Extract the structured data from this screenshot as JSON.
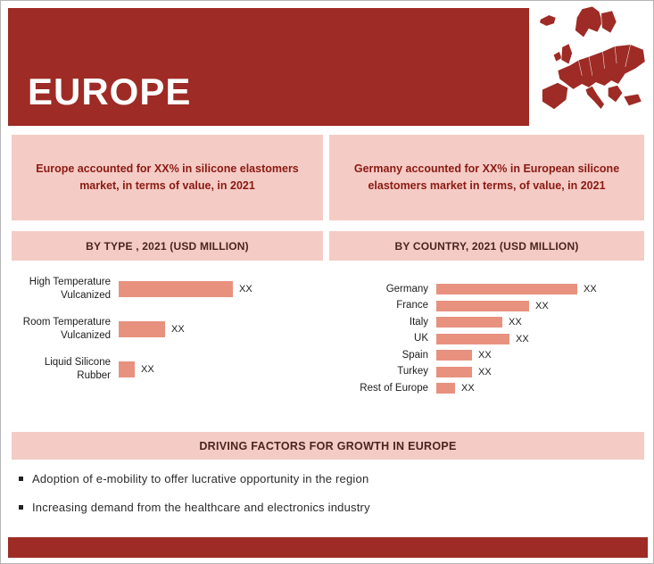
{
  "header": {
    "title": "EUROPE"
  },
  "callouts": {
    "left": "Europe accounted for XX% in silicone elastomers market, in terms of value, in 2021",
    "right": "Germany accounted for XX% in European silicone elastomers market in terms, of value, in 2021"
  },
  "chart_data": [
    {
      "type": "bar",
      "orientation": "horizontal",
      "title": "BY TYPE , 2021 (USD MILLION)",
      "categories": [
        "High Temperature Vulcanized",
        "Room Temperature Vulcanized",
        "Liquid Silicone Rubber"
      ],
      "value_labels": [
        "XX",
        "XX",
        "XX"
      ],
      "relative_values": [
        100,
        41,
        14
      ],
      "legend": "none",
      "grid": false
    },
    {
      "type": "bar",
      "orientation": "horizontal",
      "title": "BY COUNTRY, 2021 (USD MILLION)",
      "categories": [
        "Germany",
        "France",
        "Italy",
        "UK",
        "Spain",
        "Turkey",
        "Rest of Europe"
      ],
      "value_labels": [
        "XX",
        "XX",
        "XX",
        "XX",
        "XX",
        "XX",
        "XX"
      ],
      "relative_values": [
        100,
        66,
        47,
        52,
        25,
        25,
        13
      ],
      "legend": "none",
      "grid": false
    }
  ],
  "driving_factors": {
    "title": "DRIVING FACTORS FOR GROWTH IN EUROPE",
    "bullets": [
      "Adoption of e-mobility to offer lucrative opportunity in the region",
      "Increasing demand from the healthcare and electronics industry"
    ]
  },
  "colors": {
    "brand_red": "#9E2B25",
    "light_pink": "#F5CBC6",
    "bar_salmon": "#E8917F",
    "callout_text": "#8A1A12",
    "dark_text": "#4A2520"
  }
}
